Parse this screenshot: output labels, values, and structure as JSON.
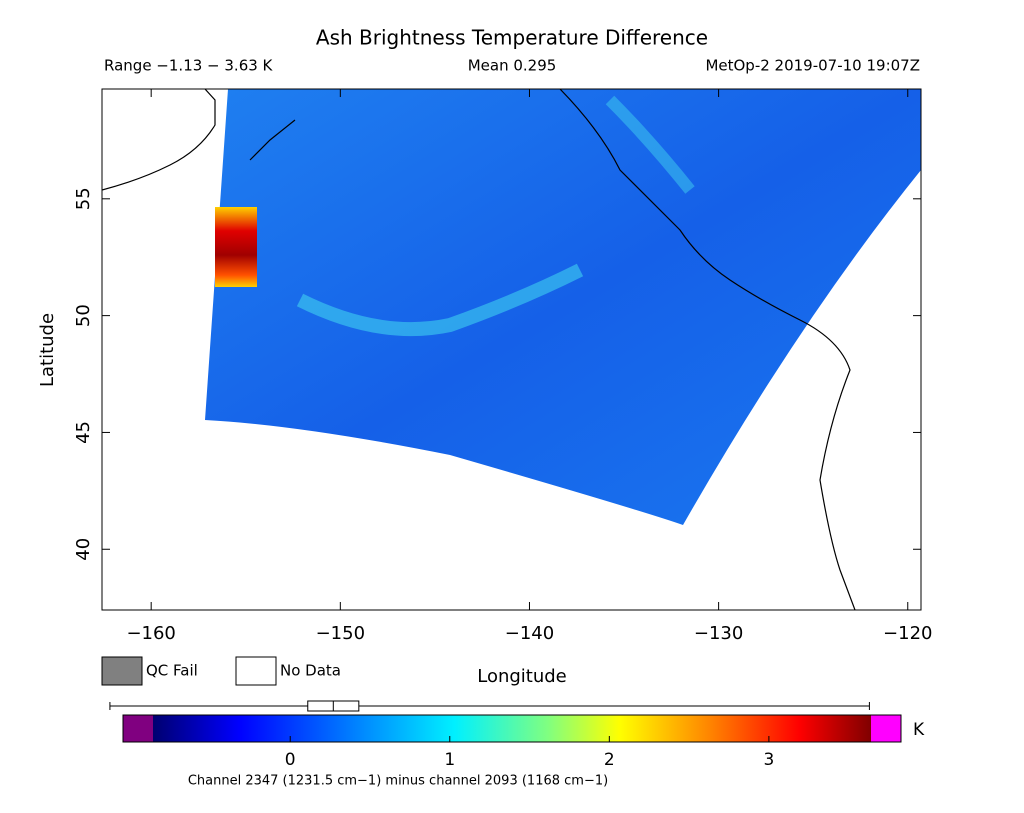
{
  "header": {
    "title": "Ash Brightness Temperature Difference",
    "range": "Range −1.13 − 3.63 K",
    "mean": "Mean 0.295",
    "source": "MetOp-2 2019-07-10 19:07Z"
  },
  "map": {
    "xlabel": "Longitude",
    "ylabel": "Latitude",
    "xlim": [
      -162.6,
      -119.3
    ],
    "ylim": [
      37.4,
      59.7
    ],
    "xticks": [
      {
        "value": -160,
        "label": "−160"
      },
      {
        "value": -150,
        "label": "−150"
      },
      {
        "value": -140,
        "label": "−140"
      },
      {
        "value": -130,
        "label": "−130"
      },
      {
        "value": -120,
        "label": "−120"
      }
    ],
    "yticks": [
      40,
      45,
      50,
      55
    ]
  },
  "legend": {
    "qc_fail": "QC Fail",
    "no_data": "No Data"
  },
  "colorbar": {
    "unit": "K",
    "lim": [
      -0.86,
      3.64
    ],
    "ticks": [
      0,
      1,
      2,
      3
    ],
    "boxplot": {
      "min": -1.13,
      "q1": 0.11,
      "median": 0.27,
      "q3": 0.43,
      "max": 3.63
    },
    "caption": "Channel 2347 (1231.5 cm−1) minus channel 2093 (1168 cm−1)"
  }
}
